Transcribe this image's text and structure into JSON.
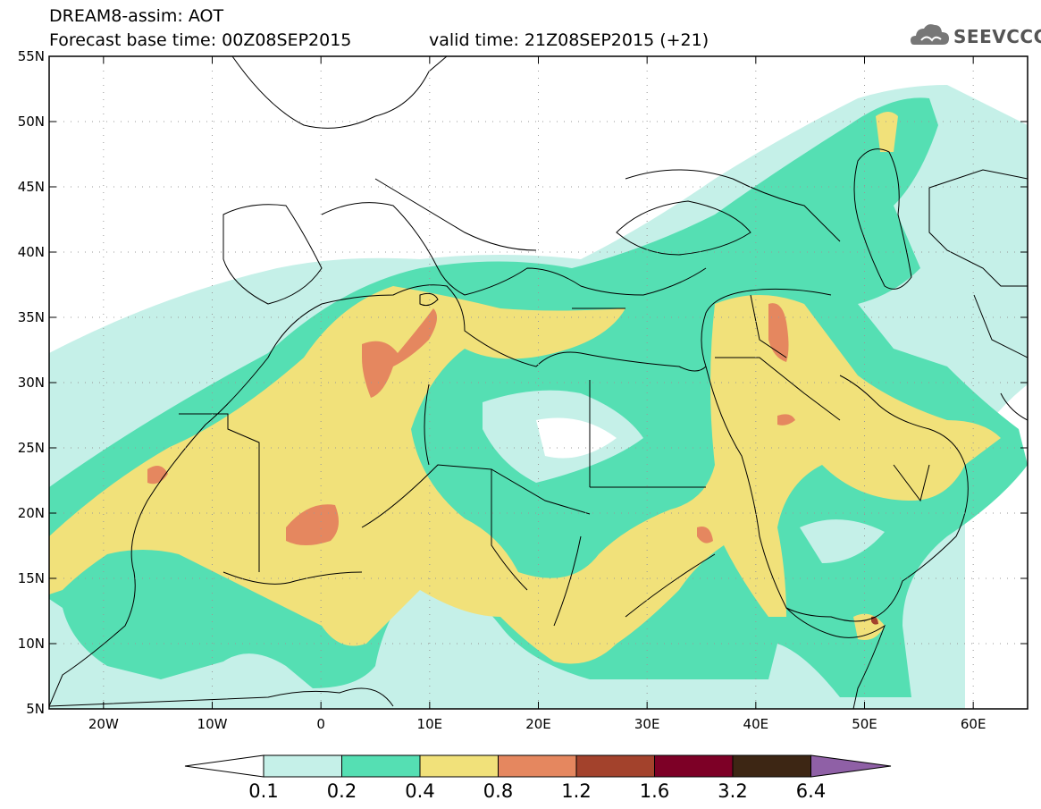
{
  "header": {
    "title": "DREAM8-assim: AOT",
    "base_time": "Forecast base time: 00Z08SEP2015",
    "valid_time": "valid time: 21Z08SEP2015 (+21)"
  },
  "logo": {
    "text": "SEEVCCC",
    "icon": "cloud-icon"
  },
  "map": {
    "lon_range": [
      -25,
      65
    ],
    "lat_range": [
      5,
      55
    ],
    "lon_ticks": [
      "20W",
      "10W",
      "0",
      "10E",
      "20E",
      "30E",
      "40E",
      "50E",
      "60E"
    ],
    "lat_ticks": [
      "5N",
      "10N",
      "15N",
      "20N",
      "25N",
      "30N",
      "35N",
      "40N",
      "45N",
      "50N",
      "55N"
    ],
    "field": "Aerosol optical thickness (dust)",
    "hotspots": [
      {
        "lon": 5.5,
        "lat": 31.5
      },
      {
        "lon": 8.5,
        "lat": 34.5
      },
      {
        "lon": -0.5,
        "lat": 20.5
      },
      {
        "lon": 42.5,
        "lat": 34.0
      },
      {
        "lon": -14.5,
        "lat": 23.5
      },
      {
        "lon": 35.5,
        "lat": 17.5
      },
      {
        "lon": 51.0,
        "lat": 11.5
      }
    ]
  },
  "colorbar": {
    "labels": [
      "0.1",
      "0.2",
      "0.4",
      "0.8",
      "1.2",
      "1.6",
      "3.2",
      "6.4"
    ],
    "colors": [
      "#ffffff",
      "#c5f0e8",
      "#55dfb3",
      "#f1e17a",
      "#e5875f",
      "#a3422c",
      "#7d0026",
      "#3d2614",
      "#8f60a6"
    ]
  }
}
